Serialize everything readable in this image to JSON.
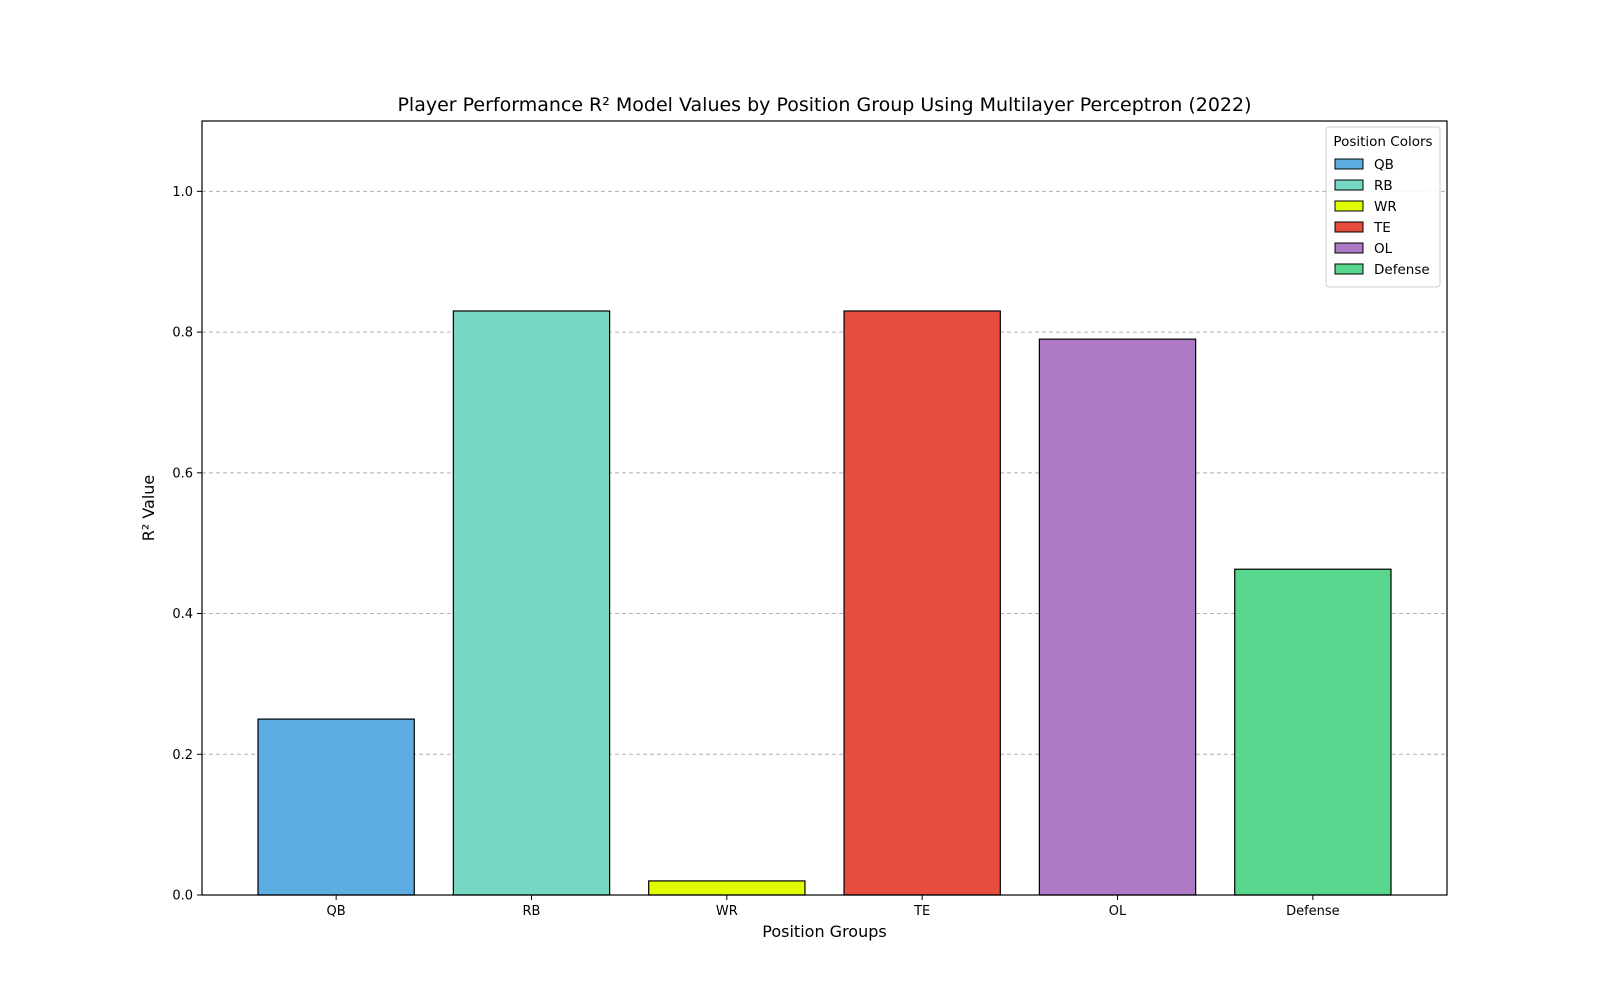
{
  "chart_data": {
    "type": "bar",
    "title": "Player Performance R² Model Values by Position Group Using Multilayer Perceptron (2022)",
    "xlabel": "Position Groups",
    "ylabel": "R² Value",
    "categories": [
      "QB",
      "RB",
      "WR",
      "TE",
      "OL",
      "Defense"
    ],
    "values": [
      0.25,
      0.83,
      0.02,
      0.83,
      0.79,
      0.463
    ],
    "colors": [
      "#5dade2",
      "#76d7c4",
      "#dfff00",
      "#e74c3c",
      "#af7ac5",
      "#58d68d"
    ],
    "ylim": [
      0,
      1.1
    ],
    "yticks": [
      0.0,
      0.2,
      0.4,
      0.6,
      0.8,
      1.0
    ],
    "ytick_labels": [
      "0.0",
      "0.2",
      "0.4",
      "0.6",
      "0.8",
      "1.0"
    ],
    "grid": "y-dashed",
    "legend": {
      "title": "Position Colors",
      "placement": "top-right",
      "entries": [
        "QB",
        "RB",
        "WR",
        "TE",
        "OL",
        "Defense"
      ]
    }
  }
}
